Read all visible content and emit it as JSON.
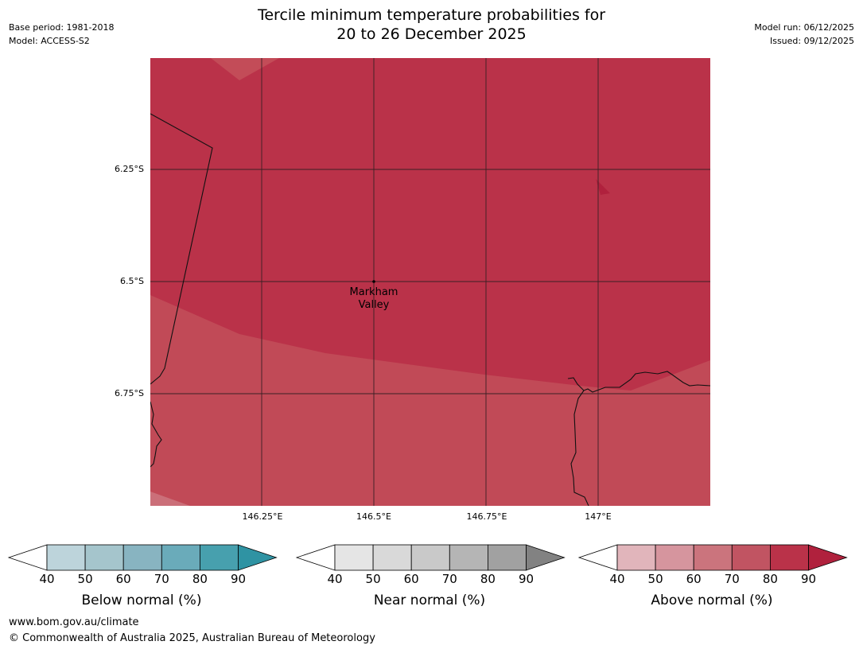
{
  "header": {
    "title_line1": "Tercile minimum temperature probabilities for",
    "title_line2": "20 to 26 December 2025",
    "base_period": "Base period: 1981-2018",
    "model": "Model: ACCESS-S2",
    "model_run": "Model run: 06/12/2025",
    "issued": "Issued: 09/12/2025"
  },
  "map": {
    "latitude_labels": [
      "6.25°S",
      "6.5°S",
      "6.75°S"
    ],
    "longitude_labels": [
      "146.25°E",
      "146.5°E",
      "146.75°E",
      "147°E"
    ],
    "place": {
      "name_line1": "Markham",
      "name_line2": "Valley"
    },
    "region_colors": {
      "above_80_90": "#ba3249",
      "above_70_80": "#c14a57",
      "above_60_70": "#cb6f79",
      "hotspot_90_plus": "#b0213d"
    }
  },
  "colorbars": [
    {
      "name": "below-normal",
      "label": "Below normal (%)",
      "ticks": [
        "40",
        "50",
        "60",
        "70",
        "80",
        "90"
      ],
      "colors": [
        "#bdd4db",
        "#a5c5cc",
        "#88b4c1",
        "#6aabba",
        "#47a0ae"
      ],
      "over_color": "#2f93a3"
    },
    {
      "name": "near-normal",
      "label": "Near normal (%)",
      "ticks": [
        "40",
        "50",
        "60",
        "70",
        "80",
        "90"
      ],
      "colors": [
        "#e5e5e5",
        "#d9d9d9",
        "#c9c9c9",
        "#b5b5b5",
        "#a1a1a1"
      ],
      "over_color": "#828282"
    },
    {
      "name": "above-normal",
      "label": "Above normal (%)",
      "ticks": [
        "40",
        "50",
        "60",
        "70",
        "80",
        "90"
      ],
      "colors": [
        "#e1b5bb",
        "#d6959e",
        "#cb747d",
        "#c15462",
        "#ba3249"
      ],
      "over_color": "#b0213d"
    }
  ],
  "footer": {
    "url": "www.bom.gov.au/climate",
    "copyright": "© Commonwealth of Australia 2025, Australian Bureau of Meteorology"
  }
}
